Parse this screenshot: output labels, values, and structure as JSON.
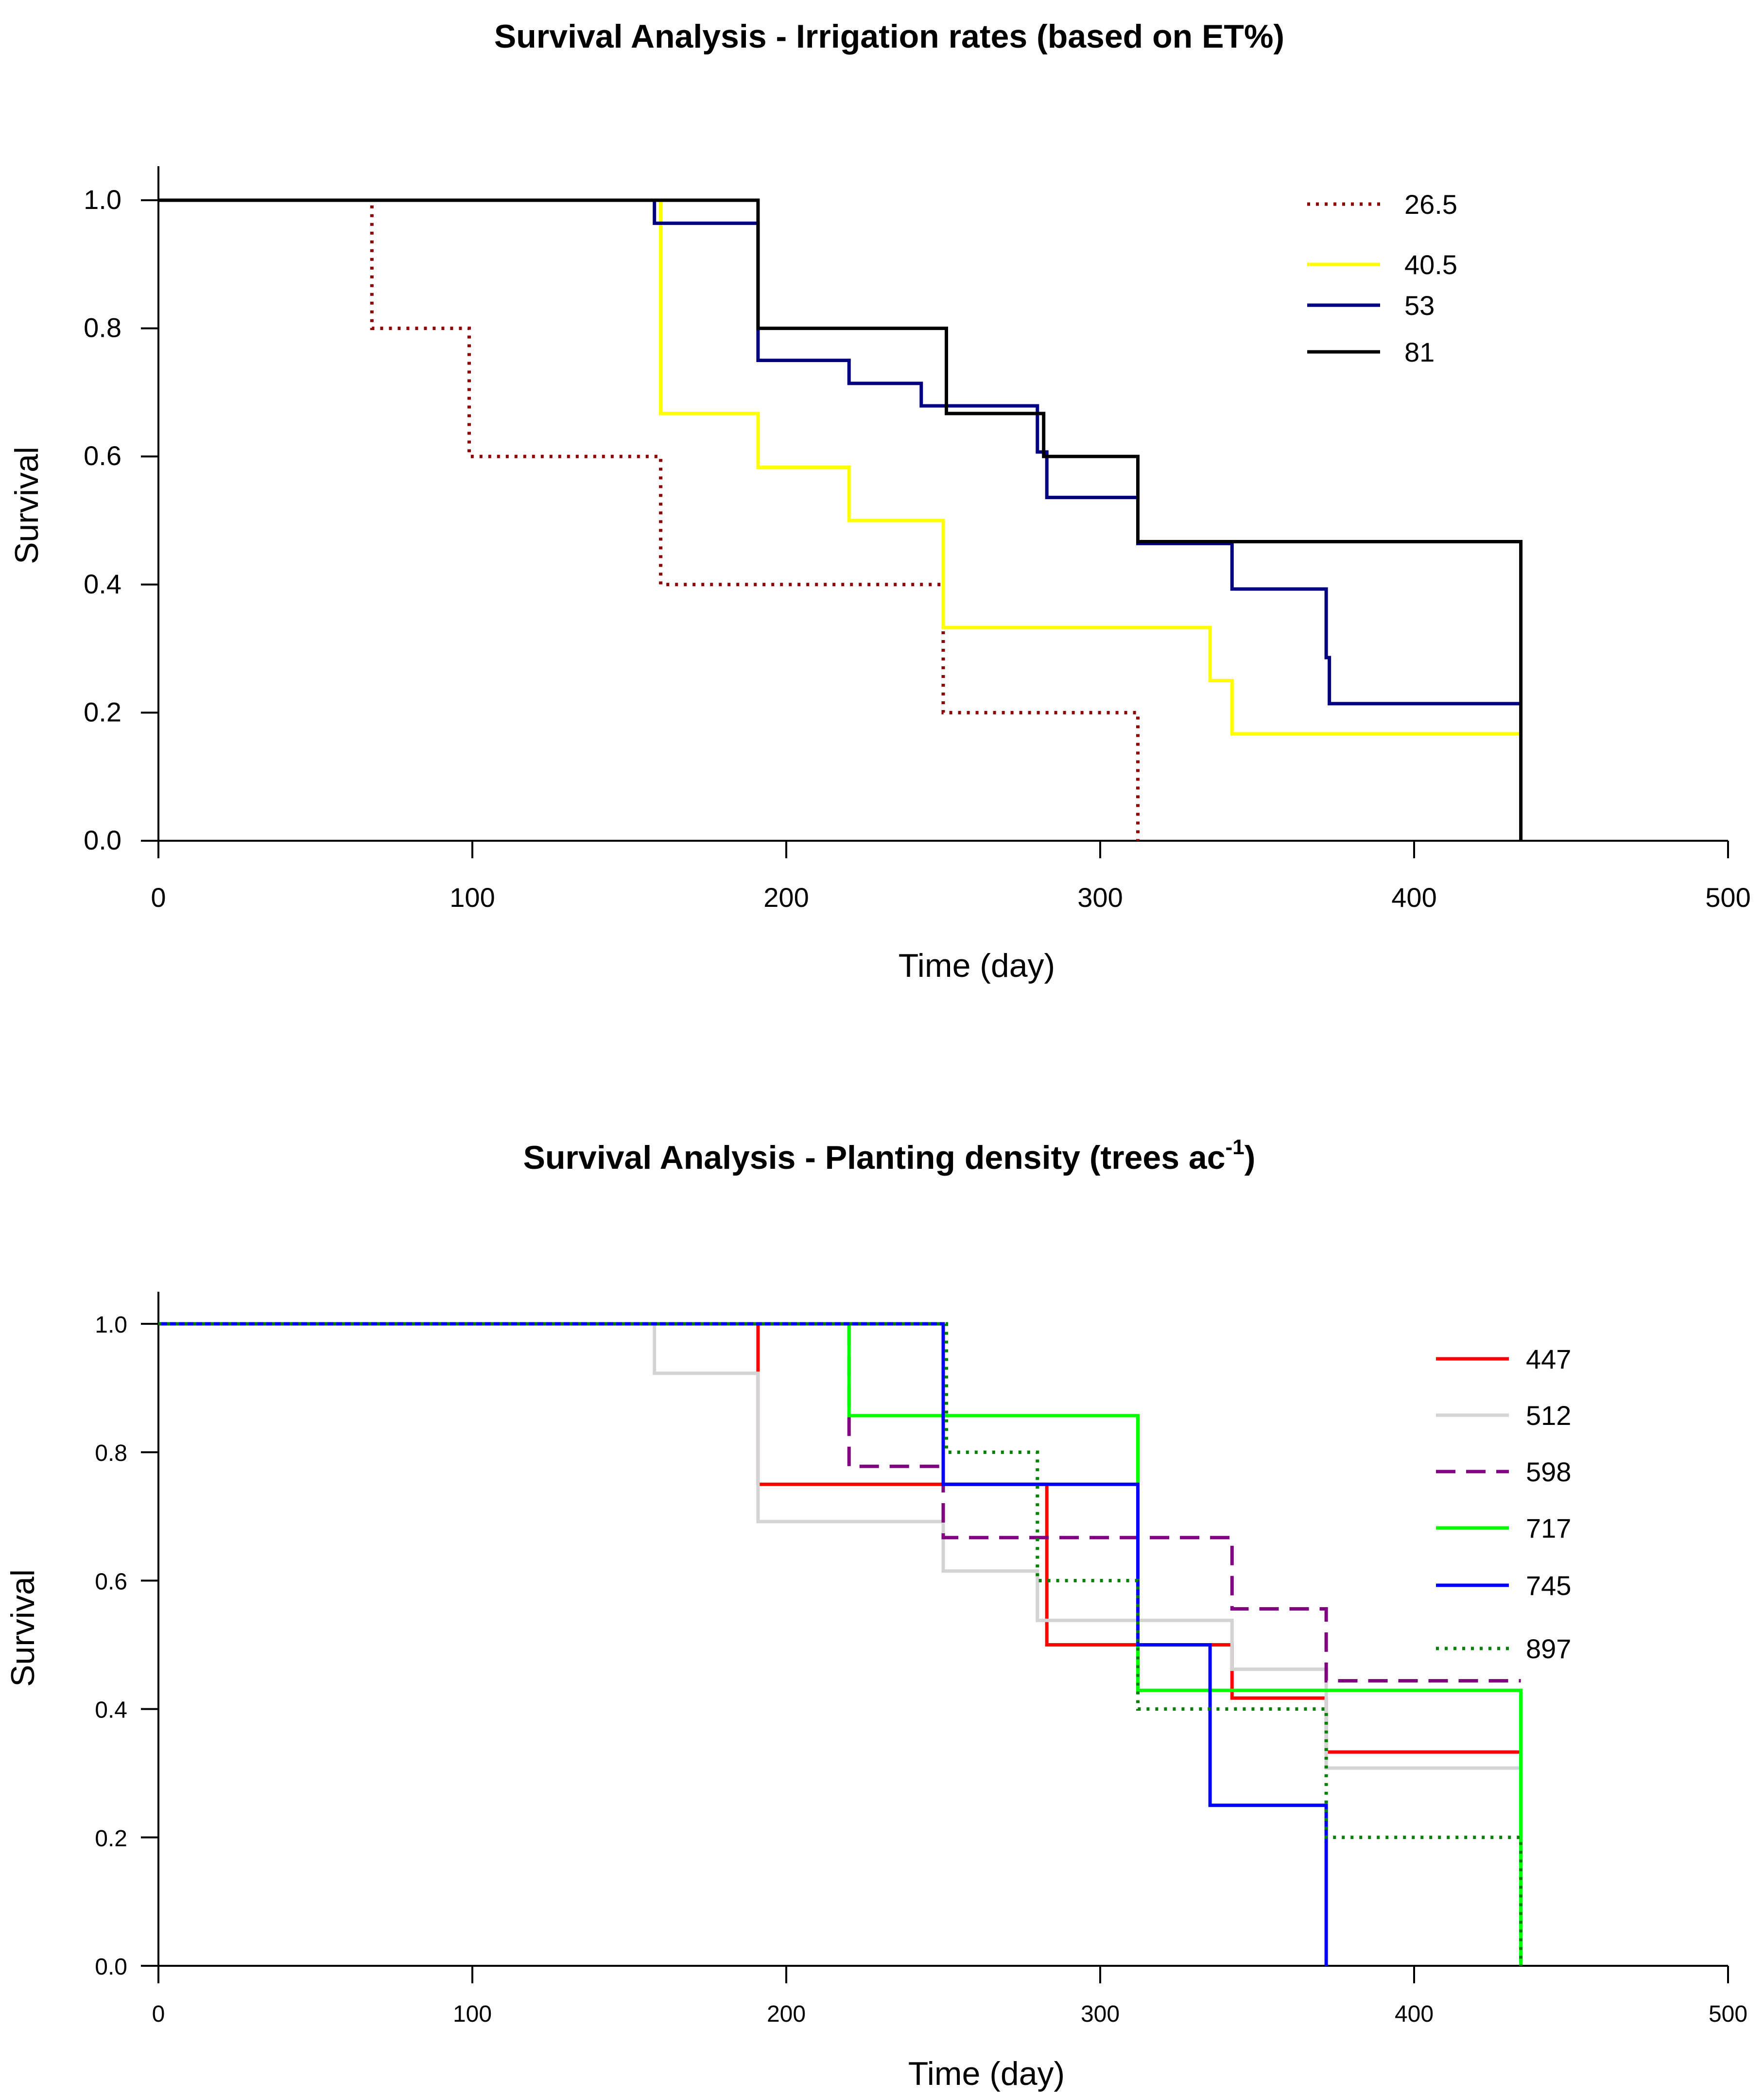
{
  "chart_data": [
    {
      "type": "line",
      "subtype": "kaplan-meier step",
      "title": "Survival Analysis - Irrigation rates (based on ET%)",
      "xlabel": "Time (day)",
      "ylabel": "Survival",
      "xlim": [
        0,
        500
      ],
      "ylim": [
        0,
        1.05
      ],
      "xticks": [
        "0",
        "100",
        "200",
        "300",
        "400",
        "500"
      ],
      "yticks": [
        "0.0",
        "0.2",
        "0.4",
        "0.6",
        "0.8",
        "1.0"
      ],
      "legend_position": "top-right",
      "series": [
        {
          "name": "26.5",
          "color": "#8b0000",
          "dash": "dotted",
          "points": [
            [
              0,
              1.0
            ],
            [
              68,
              1.0
            ],
            [
              68,
              0.8
            ],
            [
              99,
              0.8
            ],
            [
              99,
              0.6
            ],
            [
              160,
              0.6
            ],
            [
              160,
              0.4
            ],
            [
              250,
              0.4
            ],
            [
              250,
              0.2
            ],
            [
              312,
              0.2
            ],
            [
              312,
              0.0
            ]
          ]
        },
        {
          "name": "40.5",
          "color": "#ffff00",
          "dash": "solid",
          "points": [
            [
              0,
              1.0
            ],
            [
              160,
              1.0
            ],
            [
              160,
              0.667
            ],
            [
              191,
              0.667
            ],
            [
              191,
              0.583
            ],
            [
              220,
              0.583
            ],
            [
              220,
              0.5
            ],
            [
              250,
              0.5
            ],
            [
              250,
              0.333
            ],
            [
              335,
              0.333
            ],
            [
              335,
              0.25
            ],
            [
              342,
              0.25
            ],
            [
              342,
              0.167
            ],
            [
              434,
              0.167
            ]
          ]
        },
        {
          "name": "53",
          "color": "#000080",
          "dash": "solid",
          "points": [
            [
              0,
              1.0
            ],
            [
              158,
              1.0
            ],
            [
              158,
              0.964
            ],
            [
              191,
              0.964
            ],
            [
              191,
              0.75
            ],
            [
              220,
              0.75
            ],
            [
              220,
              0.714
            ],
            [
              243,
              0.714
            ],
            [
              243,
              0.679
            ],
            [
              280,
              0.679
            ],
            [
              280,
              0.607
            ],
            [
              283,
              0.607
            ],
            [
              283,
              0.536
            ],
            [
              312,
              0.536
            ],
            [
              312,
              0.464
            ],
            [
              342,
              0.464
            ],
            [
              342,
              0.393
            ],
            [
              372,
              0.393
            ],
            [
              372,
              0.286
            ],
            [
              373,
              0.286
            ],
            [
              373,
              0.214
            ],
            [
              434,
              0.214
            ]
          ]
        },
        {
          "name": "81",
          "color": "#000000",
          "dash": "solid",
          "points": [
            [
              0,
              1.0
            ],
            [
              191,
              1.0
            ],
            [
              191,
              0.8
            ],
            [
              251,
              0.8
            ],
            [
              251,
              0.667
            ],
            [
              282,
              0.667
            ],
            [
              282,
              0.6
            ],
            [
              312,
              0.6
            ],
            [
              312,
              0.467
            ],
            [
              434,
              0.467
            ],
            [
              434,
              0.0
            ]
          ]
        }
      ]
    },
    {
      "type": "line",
      "subtype": "kaplan-meier step",
      "title_main": "Survival Analysis - Planting density (trees ac",
      "title_sup": "-1",
      "title_end": ")",
      "xlabel": "Time (day)",
      "ylabel": "Survival",
      "xlim": [
        0,
        500
      ],
      "ylim": [
        0,
        1.05
      ],
      "xticks": [
        "0",
        "100",
        "200",
        "300",
        "400",
        "500"
      ],
      "yticks": [
        "0.0",
        "0.2",
        "0.4",
        "0.6",
        "0.8",
        "1.0"
      ],
      "legend_position": "top-right",
      "series": [
        {
          "name": "447",
          "color": "#ff0000",
          "dash": "solid",
          "points": [
            [
              0,
              1.0
            ],
            [
              191,
              1.0
            ],
            [
              191,
              0.75
            ],
            [
              283,
              0.75
            ],
            [
              283,
              0.5
            ],
            [
              342,
              0.5
            ],
            [
              342,
              0.417
            ],
            [
              372,
              0.417
            ],
            [
              372,
              0.333
            ],
            [
              434,
              0.333
            ]
          ]
        },
        {
          "name": "512",
          "color": "#d3d3d3",
          "dash": "solid",
          "points": [
            [
              0,
              1.0
            ],
            [
              158,
              1.0
            ],
            [
              158,
              0.923
            ],
            [
              191,
              0.923
            ],
            [
              191,
              0.692
            ],
            [
              250,
              0.692
            ],
            [
              250,
              0.615
            ],
            [
              280,
              0.615
            ],
            [
              280,
              0.538
            ],
            [
              342,
              0.538
            ],
            [
              342,
              0.462
            ],
            [
              372,
              0.462
            ],
            [
              372,
              0.308
            ],
            [
              434,
              0.308
            ]
          ]
        },
        {
          "name": "598",
          "color": "#800080",
          "dash": "dashed",
          "points": [
            [
              0,
              1.0
            ],
            [
              220,
              1.0
            ],
            [
              220,
              0.778
            ],
            [
              250,
              0.778
            ],
            [
              250,
              0.667
            ],
            [
              342,
              0.667
            ],
            [
              342,
              0.556
            ],
            [
              372,
              0.556
            ],
            [
              372,
              0.444
            ],
            [
              434,
              0.444
            ]
          ]
        },
        {
          "name": "717",
          "color": "#00ff00",
          "dash": "solid",
          "points": [
            [
              0,
              1.0
            ],
            [
              220,
              1.0
            ],
            [
              220,
              0.857
            ],
            [
              312,
              0.857
            ],
            [
              312,
              0.429
            ],
            [
              434,
              0.429
            ],
            [
              434,
              0.0
            ]
          ]
        },
        {
          "name": "745",
          "color": "#0000ff",
          "dash": "solid",
          "points": [
            [
              0,
              1.0
            ],
            [
              250,
              1.0
            ],
            [
              250,
              0.75
            ],
            [
              312,
              0.75
            ],
            [
              312,
              0.5
            ],
            [
              335,
              0.5
            ],
            [
              335,
              0.25
            ],
            [
              372,
              0.25
            ],
            [
              372,
              0.0
            ]
          ]
        },
        {
          "name": "897",
          "color": "#008000",
          "dash": "dotted",
          "points": [
            [
              0,
              1.0
            ],
            [
              251,
              1.0
            ],
            [
              251,
              0.8
            ],
            [
              280,
              0.8
            ],
            [
              280,
              0.6
            ],
            [
              312,
              0.6
            ],
            [
              312,
              0.4
            ],
            [
              372,
              0.4
            ],
            [
              372,
              0.2
            ],
            [
              434,
              0.2
            ],
            [
              434,
              0.0
            ]
          ]
        }
      ]
    }
  ]
}
